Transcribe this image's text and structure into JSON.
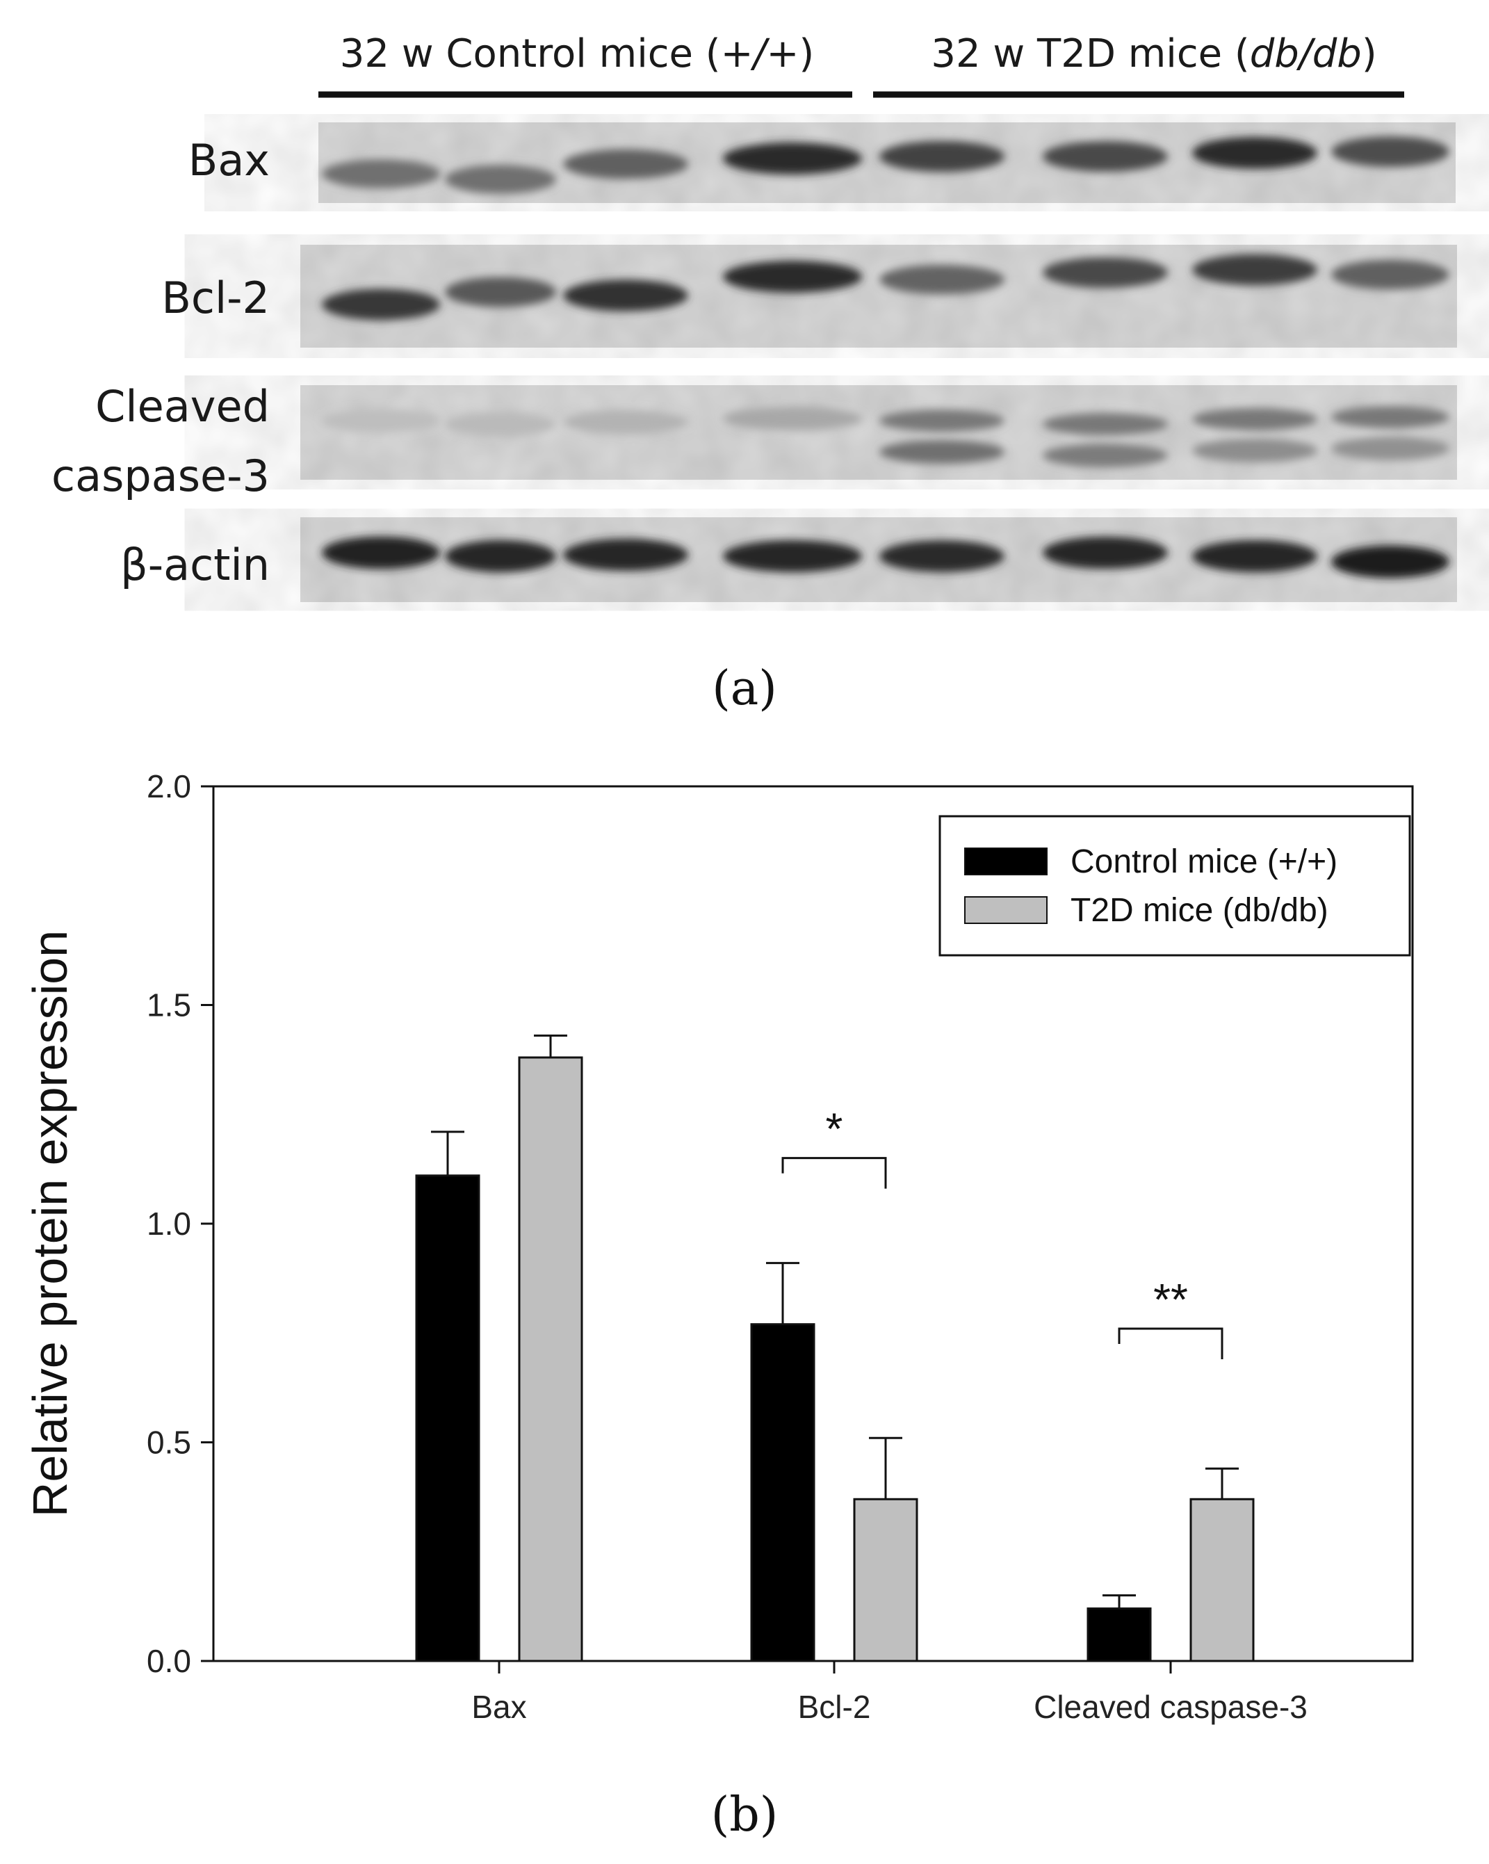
{
  "panel_a": {
    "label": "(a)",
    "groups": [
      {
        "prefix": "32 w Control mice (",
        "genotype": "+/+",
        "suffix": ")"
      },
      {
        "prefix": "32 w T2D mice (",
        "genotype": "db/db",
        "suffix": ")"
      }
    ],
    "rows": [
      {
        "label": "Bax",
        "band_intensity": [
          0.55,
          0.55,
          0.62,
          0.85,
          0.75,
          0.72,
          0.85,
          0.7
        ]
      },
      {
        "label": "Bcl-2",
        "band_intensity": [
          0.8,
          0.65,
          0.82,
          0.85,
          0.6,
          0.72,
          0.78,
          0.62
        ]
      },
      {
        "label": "Cleaved",
        "label2": "caspase-3",
        "band_intensity": [
          0.2,
          0.22,
          0.25,
          0.3,
          0.55,
          0.5,
          0.42,
          0.4
        ]
      },
      {
        "label": "β-actin",
        "band_intensity": [
          0.9,
          0.88,
          0.88,
          0.88,
          0.85,
          0.88,
          0.88,
          0.92
        ]
      }
    ]
  },
  "panel_b": {
    "label": "(b)"
  },
  "chart_data": {
    "type": "bar",
    "categories": [
      "Bax",
      "Bcl-2",
      "Cleaved caspase-3"
    ],
    "series": [
      {
        "name": "Control mice (+/+)",
        "color": "#000000",
        "values": [
          1.11,
          0.77,
          0.12
        ],
        "errors": [
          0.1,
          0.14,
          0.03
        ]
      },
      {
        "name": "T2D mice (db/db)",
        "color": "#bfbfbf",
        "values": [
          1.38,
          0.37,
          0.37
        ],
        "errors": [
          0.05,
          0.14,
          0.07
        ]
      }
    ],
    "ylabel": "Relative protein expression",
    "xlabel": "",
    "ylim": [
      0,
      2.0
    ],
    "yticks": [
      "0.0",
      "0.5",
      "1.0",
      "1.5",
      "2.0"
    ],
    "legend_position": "top-right",
    "annotations": [
      {
        "category": "Bcl-2",
        "text": "*",
        "y": 1.15
      },
      {
        "category": "Cleaved caspase-3",
        "text": "**",
        "y": 0.76
      }
    ]
  }
}
